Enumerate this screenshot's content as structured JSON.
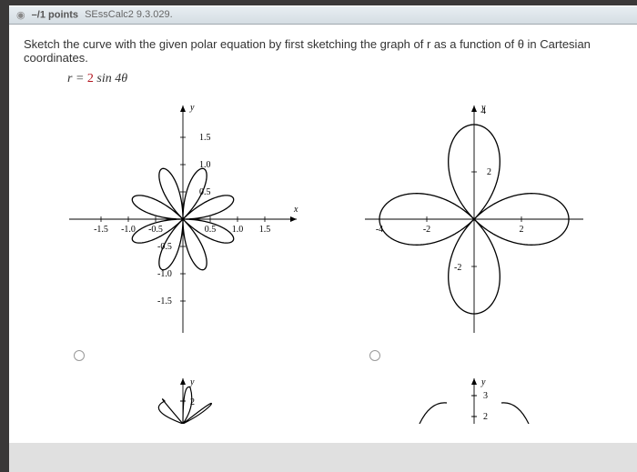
{
  "header": {
    "points_label": "–/1 points",
    "reference": "SEssCalc2 9.3.029."
  },
  "question": {
    "text": "Sketch the curve with the given polar equation by first sketching the graph of r as a function of θ in Cartesian coordinates.",
    "equation_prefix": "r = ",
    "equation_coeff": "2",
    "equation_suffix": " sin 4θ"
  },
  "plot_a": {
    "type": "polar-rose",
    "petals": 8,
    "amplitude": 2,
    "stroke": "#000000",
    "stroke_width": 1.3,
    "bg": "#ffffff",
    "x_ticks": [
      "-1.5",
      "-1.0",
      "-0.5",
      "0.5",
      "1.0",
      "1.5"
    ],
    "y_ticks": [
      "1.5",
      "1.0",
      "0.5",
      "-0.5",
      "-1.0",
      "-1.5"
    ],
    "x_label": "x",
    "y_label": "y",
    "xlim": [
      -2,
      2
    ],
    "ylim": [
      -2,
      2
    ],
    "label_fontsize": 10,
    "axis_fontsize": 11
  },
  "plot_b": {
    "type": "polar-rose",
    "petals": 4,
    "amplitude": 4,
    "stroke": "#000000",
    "stroke_width": 1.3,
    "bg": "#ffffff",
    "x_ticks": [
      "-4",
      "-2",
      "2"
    ],
    "y_ticks": [
      "2",
      "-2"
    ],
    "y_top": "4",
    "x_label": "",
    "y_label": "y",
    "xlim": [
      -4.5,
      4.5
    ],
    "ylim": [
      -4.5,
      4.5
    ],
    "label_fontsize": 10,
    "axis_fontsize": 11
  },
  "plot_c": {
    "type": "polar-rose-partial",
    "visible_petals_top": 3,
    "stroke": "#000000",
    "y_label": "y",
    "y_top": "2"
  },
  "plot_d": {
    "type": "polar-rose-partial",
    "stroke": "#000000",
    "y_label": "y",
    "y_ticks": [
      "3",
      "2"
    ]
  }
}
